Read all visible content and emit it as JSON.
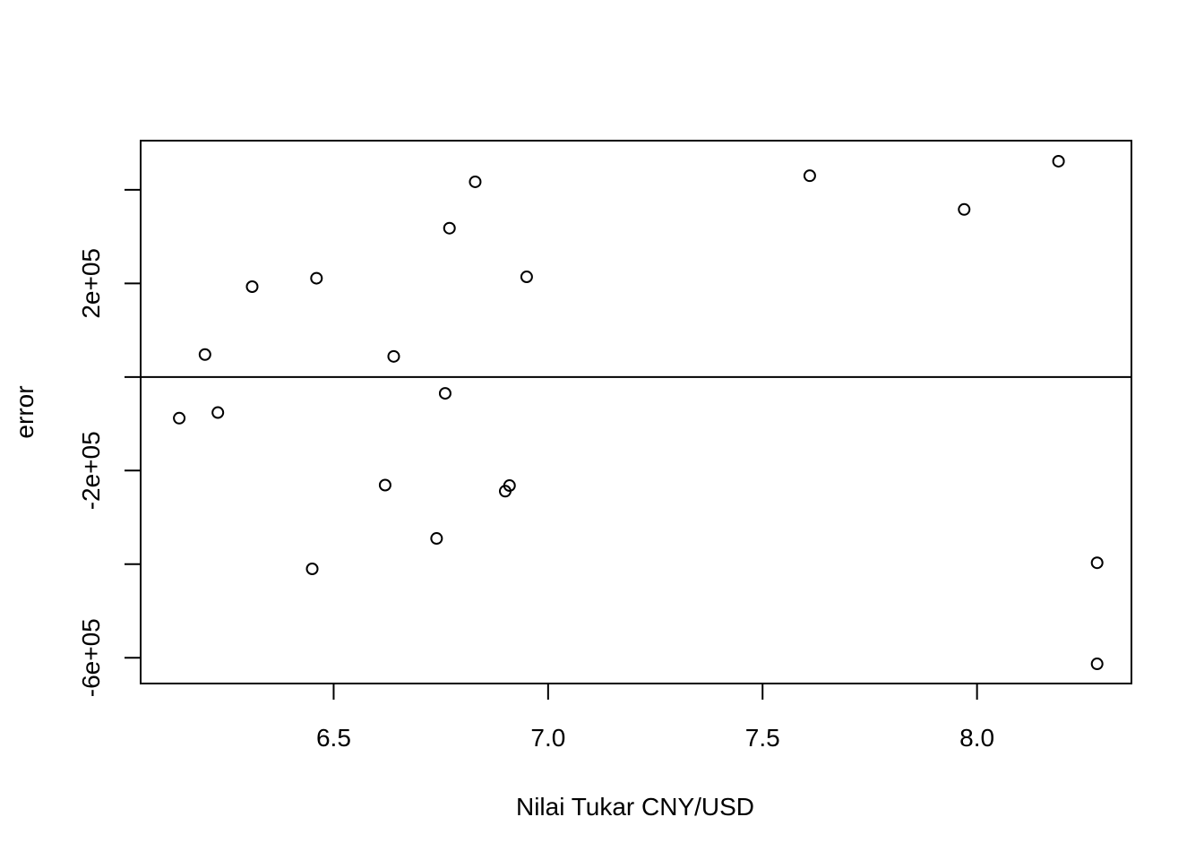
{
  "chart_data": {
    "type": "scatter",
    "title": "",
    "xlabel": "Nilai Tukar CNY/USD",
    "ylabel": "error",
    "xlim": [
      6.05,
      8.36
    ],
    "ylim": [
      -655000,
      505000
    ],
    "x_ticks": [
      6.5,
      7.0,
      7.5,
      8.0
    ],
    "x_tick_labels": [
      "6.5",
      "7.0",
      "7.5",
      "8.0"
    ],
    "y_ticks": [
      -600000,
      -400000,
      -200000,
      0,
      200000,
      400000
    ],
    "y_tick_labels": [
      "-6e+05",
      "",
      "-2e+05",
      "",
      "2e+05",
      ""
    ],
    "reference_line": {
      "y": 0
    },
    "marker": "open-circle",
    "grid": false,
    "legend": "none",
    "colors": {
      "points": "#000000",
      "axes": "#000000",
      "background": "#ffffff"
    },
    "points": [
      {
        "x": 6.14,
        "y": -88000
      },
      {
        "x": 6.2,
        "y": 48000
      },
      {
        "x": 6.23,
        "y": -76000
      },
      {
        "x": 6.31,
        "y": 193000
      },
      {
        "x": 6.45,
        "y": -410000
      },
      {
        "x": 6.46,
        "y": 211000
      },
      {
        "x": 6.62,
        "y": -231000
      },
      {
        "x": 6.64,
        "y": 44000
      },
      {
        "x": 6.74,
        "y": -345000
      },
      {
        "x": 6.76,
        "y": -35000
      },
      {
        "x": 6.77,
        "y": 318000
      },
      {
        "x": 6.83,
        "y": 417000
      },
      {
        "x": 6.9,
        "y": -244000
      },
      {
        "x": 6.91,
        "y": -232000
      },
      {
        "x": 6.95,
        "y": 214000
      },
      {
        "x": 7.61,
        "y": 430000
      },
      {
        "x": 7.97,
        "y": 358000
      },
      {
        "x": 8.19,
        "y": 461000
      },
      {
        "x": 8.28,
        "y": -397000
      },
      {
        "x": 8.28,
        "y": -613000
      }
    ]
  }
}
